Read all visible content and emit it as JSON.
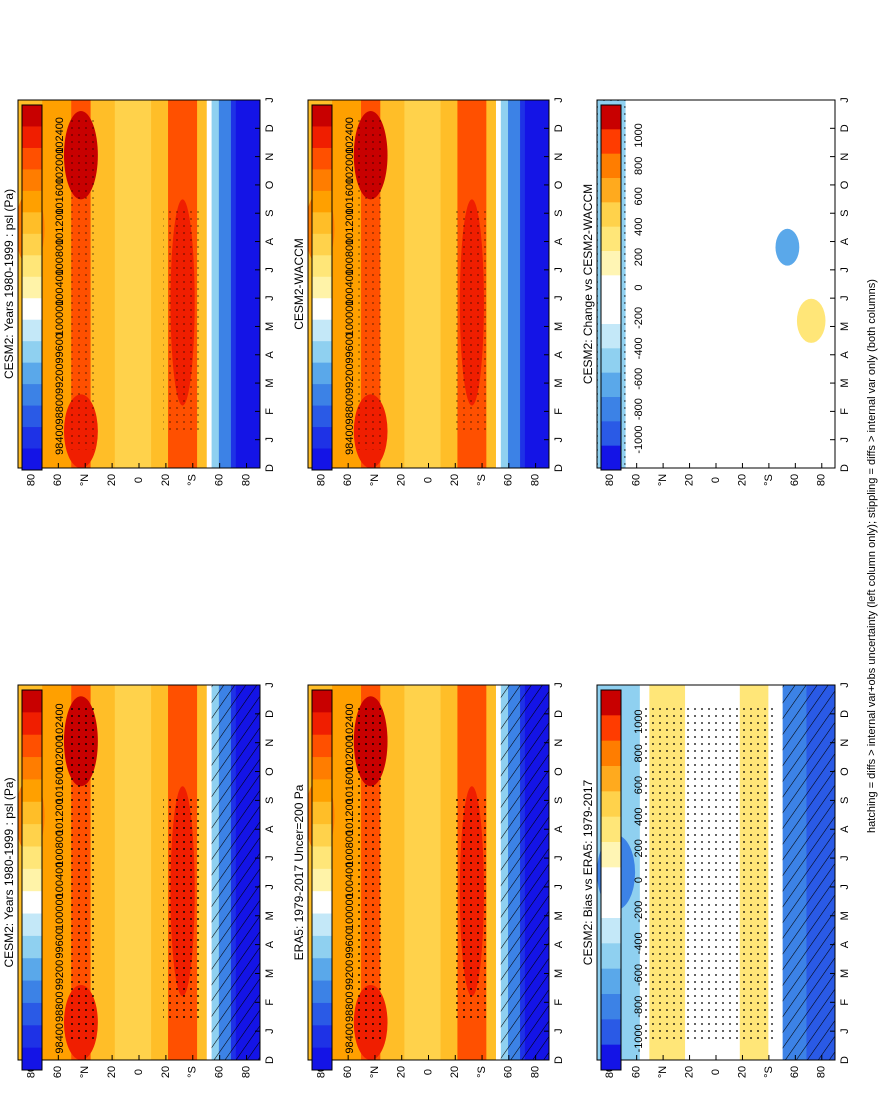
{
  "footer_note": "hatching = diffs > internal var+obs uncertainty (left column only); stippling = diffs > internal var only (both columns)",
  "months": [
    "D",
    "J",
    "F",
    "M",
    "A",
    "M",
    "J",
    "J",
    "A",
    "S",
    "O",
    "N",
    "D",
    "J"
  ],
  "lat_ticks": [
    "80",
    "60",
    "°N",
    "20",
    "0",
    "20",
    "°S",
    "60",
    "80"
  ],
  "full_scale_labels": [
    "102400",
    "102000",
    "101600",
    "101200",
    "100800",
    "100400",
    "100000",
    "99600",
    "99200",
    "98800",
    "98400"
  ],
  "diff_scale_labels": [
    "1000",
    "800",
    "600",
    "400",
    "200",
    "0",
    "-200",
    "-400",
    "-600",
    "-800",
    "-1000"
  ],
  "colors": {
    "full": [
      "#c80000",
      "#f01e00",
      "#ff5000",
      "#ff7d00",
      "#ffa000",
      "#ffbe28",
      "#ffd24b",
      "#ffe678",
      "#fff3a8",
      "#ffffff",
      "#c4e8f8",
      "#8fd0f0",
      "#5aa8ea",
      "#3c82e6",
      "#2a5ae6",
      "#1e32e6",
      "#1414e6"
    ],
    "diff": [
      "#c80000",
      "#ff3c00",
      "#ff7d00",
      "#ffaa1e",
      "#ffd24b",
      "#ffe678",
      "#fff5b4",
      "#ffffff",
      "#ffffff",
      "#c4e8f8",
      "#8fd0f0",
      "#5aa8ea",
      "#3c82e6",
      "#2a5ae6",
      "#1414e6"
    ]
  },
  "chart_data": [
    {
      "type": "heatmap",
      "title": "CESM2: Years 1980-1999 : psl (Pa)",
      "x": [
        "D",
        "J",
        "F",
        "M",
        "A",
        "M",
        "J",
        "J",
        "A",
        "S",
        "O",
        "N",
        "D",
        "J"
      ],
      "y_range": [
        -90,
        90
      ],
      "colorbar": "full",
      "hatching": true,
      "stippling": true
    },
    {
      "type": "heatmap",
      "title": "CESM2: Years 1980-1999 : psl (Pa)",
      "x": [
        "D",
        "J",
        "F",
        "M",
        "A",
        "M",
        "J",
        "J",
        "A",
        "S",
        "O",
        "N",
        "D",
        "J"
      ],
      "y_range": [
        -90,
        90
      ],
      "colorbar": "full",
      "hatching": false,
      "stippling": true
    },
    {
      "type": "heatmap",
      "title": "ERA5: 1979-2017 Uncer=200 Pa",
      "x": [
        "D",
        "J",
        "F",
        "M",
        "A",
        "M",
        "J",
        "J",
        "A",
        "S",
        "O",
        "N",
        "D",
        "J"
      ],
      "y_range": [
        -90,
        90
      ],
      "colorbar": "full",
      "hatching": true,
      "stippling": true
    },
    {
      "type": "heatmap",
      "title": "CESM2-WACCM",
      "x": [
        "D",
        "J",
        "F",
        "M",
        "A",
        "M",
        "J",
        "J",
        "A",
        "S",
        "O",
        "N",
        "D",
        "J"
      ],
      "y_range": [
        -90,
        90
      ],
      "colorbar": "full",
      "hatching": false,
      "stippling": true
    },
    {
      "type": "heatmap",
      "title": "CESM2: Bias vs ERA5: 1979-2017",
      "x": [
        "D",
        "J",
        "F",
        "M",
        "A",
        "M",
        "J",
        "J",
        "A",
        "S",
        "O",
        "N",
        "D",
        "J"
      ],
      "y_range": [
        -90,
        90
      ],
      "colorbar": "diff",
      "hatching": true,
      "stippling": true
    },
    {
      "type": "heatmap",
      "title": "CESM2: Change vs CESM2-WACCM",
      "x": [
        "D",
        "J",
        "F",
        "M",
        "A",
        "M",
        "J",
        "J",
        "A",
        "S",
        "O",
        "N",
        "D",
        "J"
      ],
      "y_range": [
        -90,
        90
      ],
      "colorbar": "diff",
      "hatching": false,
      "stippling": true
    }
  ]
}
